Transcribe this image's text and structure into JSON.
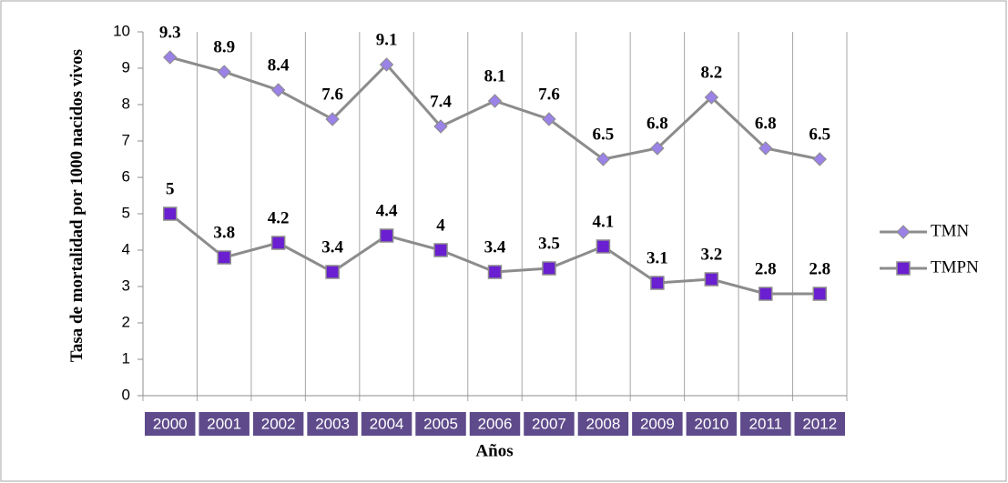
{
  "chart_data": {
    "type": "line",
    "x_label": "Años",
    "y_label": "Tasa de mortalidad por 1000 nacidos vivos",
    "categories": [
      "2000",
      "2001",
      "2002",
      "2003",
      "2004",
      "2005",
      "2006",
      "2007",
      "2008",
      "2009",
      "2010",
      "2011",
      "2012"
    ],
    "series": [
      {
        "name": "TMN",
        "color": "#9b82e6",
        "marker": "diamond",
        "values": [
          9.3,
          8.9,
          8.4,
          7.6,
          9.1,
          7.4,
          8.1,
          7.6,
          6.5,
          6.8,
          8.2,
          6.8,
          6.5
        ]
      },
      {
        "name": "TMPN",
        "color": "#6a1fd0",
        "marker": "square",
        "values": [
          5,
          3.8,
          4.2,
          3.4,
          4.4,
          4,
          3.4,
          3.5,
          4.1,
          3.1,
          3.2,
          2.8,
          2.8
        ]
      }
    ],
    "line_color": "#8c8c8c",
    "category_box_color": "#5f4b8b",
    "ylim": [
      0,
      10
    ],
    "yticks": [
      0,
      1,
      2,
      3,
      4,
      5,
      6,
      7,
      8,
      9,
      10
    ],
    "grid": "vertical",
    "legend": "right"
  }
}
